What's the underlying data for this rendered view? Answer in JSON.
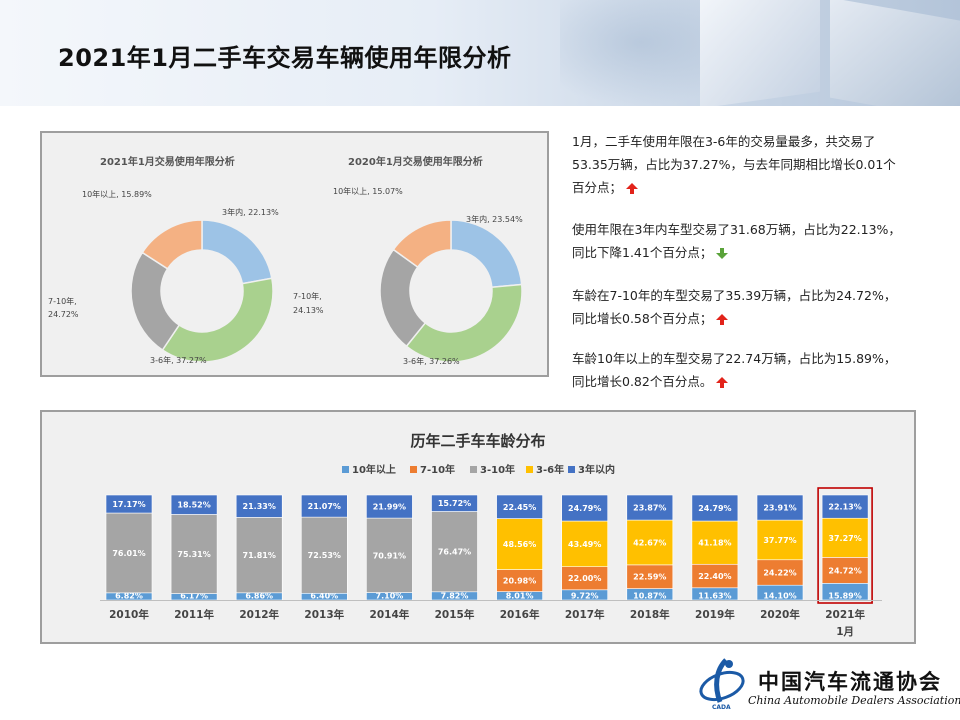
{
  "page_title": "2021年1月二手车交易车辆使用年限分析",
  "donuts": [
    {
      "title": "2021年1月交易使用年限分析",
      "labels": [
        "3年内, 22.13%",
        "3-6年, 37.27%",
        "7-10年,",
        "24.72%",
        "10年以上, 15.89%"
      ]
    },
    {
      "title": "2020年1月交易使用年限分析",
      "labels": [
        "3年内, 23.54%",
        "3-6年, 37.26%",
        "7-10年,",
        "24.13%",
        "10年以上, 15.07%"
      ]
    }
  ],
  "paragraphs": [
    {
      "lines": [
        "1月，二手车使用年限在3-6年的交易量最多，共交易了",
        "53.35万辆，占比为37.27%，与去年同期相比增长0.01个",
        "百分点；"
      ],
      "arrow": "up"
    },
    {
      "lines": [
        "使用年限在3年内车型交易了31.68万辆，占比为22.13%，",
        "同比下降1.41个百分点；"
      ],
      "arrow": "down"
    },
    {
      "lines": [
        "车龄在7-10年的车型交易了35.39万辆，占比为24.72%，",
        "同比增长0.58个百分点；"
      ],
      "arrow": "up"
    },
    {
      "lines": [
        "车龄10年以上的车型交易了22.74万辆，占比为15.89%，",
        "同比增长0.82个百分点。"
      ],
      "arrow": "up"
    }
  ],
  "logo": {
    "cn": "中国汽车流通协会",
    "en": "China Automobile Dealers Association",
    "abbr": "CADA"
  },
  "colors": {
    "10年以上": "#5b9bd5",
    "7-10年": "#ed7d31",
    "3-10年": "#a5a5a5",
    "3-6年": "#ffc000",
    "3年以内": "#4472c4",
    "donut_3年内": "#9dc3e6",
    "donut_3-6年": "#a9d18e",
    "donut_7-10年": "#a5a5a5",
    "donut_10年以上": "#f4b183",
    "highlight": "#c00000"
  },
  "chart_data": [
    {
      "type": "pie",
      "title": "2021年1月交易使用年限分析",
      "categories": [
        "3年内",
        "3-6年",
        "7-10年",
        "10年以上"
      ],
      "values": [
        22.13,
        37.27,
        24.72,
        15.89
      ]
    },
    {
      "type": "pie",
      "title": "2020年1月交易使用年限分析",
      "categories": [
        "3年内",
        "3-6年",
        "7-10年",
        "10年以上"
      ],
      "values": [
        23.54,
        37.26,
        24.13,
        15.07
      ]
    },
    {
      "type": "bar",
      "stacked": true,
      "title": "历年二手车车龄分布",
      "categories": [
        "2010年",
        "2011年",
        "2012年",
        "2013年",
        "2014年",
        "2015年",
        "2016年",
        "2017年",
        "2018年",
        "2019年",
        "2020年",
        "2021年|1月"
      ],
      "legend": [
        "10年以上",
        "7-10年",
        "3-10年",
        "3-6年",
        "3年以内"
      ],
      "legend_position": "top",
      "highlight_category": "2021年|1月",
      "series": [
        {
          "name": "10年以上",
          "values": [
            6.82,
            6.17,
            6.86,
            6.4,
            7.1,
            7.82,
            8.01,
            9.72,
            10.87,
            11.63,
            14.1,
            15.89
          ]
        },
        {
          "name": "7-10年",
          "values": [
            null,
            null,
            null,
            null,
            null,
            null,
            20.98,
            22.0,
            22.59,
            22.4,
            24.22,
            24.72
          ]
        },
        {
          "name": "3-10年",
          "values": [
            76.01,
            75.31,
            71.81,
            72.53,
            70.91,
            76.47,
            null,
            null,
            null,
            null,
            null,
            null
          ]
        },
        {
          "name": "3-6年",
          "values": [
            null,
            null,
            null,
            null,
            null,
            null,
            48.56,
            43.49,
            42.67,
            41.18,
            37.77,
            37.27
          ]
        },
        {
          "name": "3年以内",
          "values": [
            17.17,
            18.52,
            21.33,
            21.07,
            21.99,
            15.72,
            22.45,
            24.79,
            23.87,
            24.79,
            23.91,
            22.13
          ]
        }
      ]
    }
  ]
}
